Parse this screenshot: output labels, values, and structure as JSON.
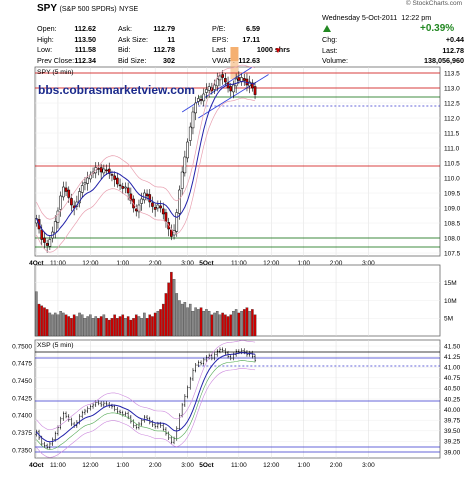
{
  "watermark": "© StockCharts.com",
  "header": {
    "symbol": "SPY",
    "name": "(S&P 500 SPDRs)",
    "exchange": "NYSE",
    "date": "Wednesday  5-Oct-2011",
    "time": "12:22 pm",
    "change_pct": "+0.39%",
    "quote_rows": [
      [
        {
          "l": "Open:",
          "v": "112.62"
        },
        {
          "l": "Ask:",
          "v": "112.79"
        },
        {
          "l": "P/E:",
          "v": "6.59"
        }
      ],
      [
        {
          "l": "High:",
          "v": "113.50"
        },
        {
          "l": "Ask Size:",
          "v": "11"
        },
        {
          "l": "EPS:",
          "v": "17.11"
        }
      ],
      [
        {
          "l": "Low:",
          "v": "111.58"
        },
        {
          "l": "Bid:",
          "v": "112.78"
        },
        {
          "l": "Last",
          "v": "1000 shrs"
        }
      ],
      [
        {
          "l": "Prev Close:",
          "v": "112.34"
        },
        {
          "l": "Bid Size:",
          "v": "302"
        },
        {
          "l": "VWAP:",
          "v": "112.63"
        }
      ]
    ],
    "right_rows": [
      {
        "l": "Chg:",
        "v": "+0.44"
      },
      {
        "l": "Last:",
        "v": "112.78"
      },
      {
        "l": "Volume:",
        "v": "138,056,960"
      }
    ]
  },
  "colors": {
    "candle_up": "#ffffff",
    "candle_down": "#cc0000",
    "ma": "#2222aa",
    "band": "#e8a0b0",
    "green_line": "#006600",
    "red_line": "#cc0000",
    "vol_up": "#888888",
    "vol_down": "#cc0000",
    "highlight": "#f5b070"
  },
  "chart_data": [
    {
      "type": "candlestick",
      "title": "SPY (5 min)",
      "annotation": "bbs.cobrasmarketview.com",
      "ylim": [
        107.4,
        113.7
      ],
      "y_ticks": [
        107.5,
        108.0,
        108.5,
        109.0,
        109.5,
        110.0,
        110.5,
        111.0,
        111.5,
        112.0,
        112.5,
        113.0,
        113.5
      ],
      "x_ticks": [
        "4Oct",
        "11:00",
        "12:00",
        "1:00",
        "2:00",
        "3:00",
        "5Oct",
        "11:00",
        "12:00",
        "1:00",
        "2:00",
        "3:00"
      ],
      "close": [
        108.65,
        108.3,
        107.95,
        107.85,
        107.75,
        107.95,
        108.2,
        108.55,
        108.9,
        109.4,
        109.7,
        109.55,
        109.35,
        109.1,
        109.0,
        109.2,
        109.55,
        109.75,
        109.85,
        110.0,
        110.1,
        110.2,
        110.35,
        110.3,
        110.2,
        110.3,
        110.25,
        110.15,
        110.1,
        109.95,
        109.8,
        109.75,
        109.65,
        109.7,
        109.5,
        109.25,
        109.0,
        108.9,
        109.1,
        109.3,
        109.5,
        109.4,
        109.2,
        109.05,
        108.95,
        109.1,
        109.0,
        108.8,
        108.55,
        108.3,
        108.05,
        108.25,
        108.85,
        109.6,
        110.2,
        110.7,
        111.2,
        111.7,
        112.2,
        112.5,
        112.65,
        112.6,
        112.8,
        112.95,
        113.05,
        112.9,
        113.1,
        113.3,
        113.4,
        113.35,
        113.2,
        113.0,
        112.9,
        113.1,
        113.3,
        113.25,
        113.35,
        113.25,
        113.1,
        113.2,
        113.0,
        112.78
      ],
      "volume_m": [
        12.5,
        9,
        8.5,
        8,
        7.5,
        6.5,
        6,
        6.5,
        6,
        7,
        6.5,
        6,
        5.5,
        5,
        6,
        5.5,
        6.5,
        6,
        5,
        5.5,
        6,
        5,
        5.5,
        5,
        5.5,
        6,
        5,
        4.5,
        5,
        6,
        5,
        5.5,
        6,
        5,
        5.5,
        4.5,
        5,
        6,
        5.5,
        5,
        6.5,
        5,
        6,
        5.5,
        6.5,
        7,
        7.5,
        9,
        12,
        15,
        18,
        16,
        12,
        10,
        9,
        9.5,
        8,
        9,
        7,
        8,
        7.5,
        8,
        7,
        7.5,
        7,
        6,
        6.5,
        7,
        6,
        6.5,
        6,
        5.5,
        6,
        7,
        7.5,
        6.5,
        7,
        7.5,
        8,
        7,
        7.5,
        6
      ],
      "volume_ticks": [
        "15M",
        "10M",
        "5M"
      ],
      "horizontal_lines": [
        113.0,
        110.4,
        108.0,
        107.7
      ],
      "ma": "moving average (blue)"
    },
    {
      "type": "line",
      "title": "XSP (5 min)",
      "left_ticks": [
        "0.7500",
        "0.7475",
        "0.7450",
        "0.7425",
        "0.7400",
        "0.7375",
        "0.7350"
      ],
      "right_ticks": [
        "41.50",
        "41.25",
        "41.00",
        "40.75",
        "40.50",
        "40.25",
        "40.00",
        "39.75",
        "39.50",
        "39.25",
        "39.00"
      ],
      "x_ticks": [
        "4Oct",
        "11:00",
        "12:00",
        "1:00",
        "2:00",
        "3:00",
        "5Oct",
        "11:00",
        "12:00",
        "1:00",
        "2:00",
        "3:00"
      ]
    }
  ]
}
